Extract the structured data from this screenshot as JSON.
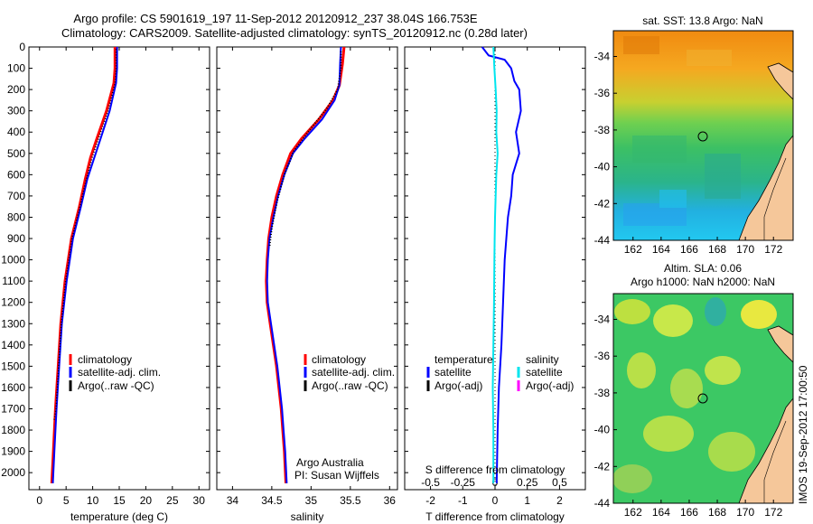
{
  "header": {
    "line1": "Argo profile: CS 5901619_197 11-Sep-2012 20120912_237 38.04S 166.753E",
    "line2": "Climatology: CARS2009. Satellite-adjusted climatology: synTS_20120912.nc (0.28d later)"
  },
  "colors": {
    "climatology": "#ff0000",
    "satellite": "#0000ff",
    "argo": "#000000",
    "sal_satellite": "#00e5ee",
    "sal_argo": "#ff00ff"
  },
  "depth_ticks": [
    "0",
    "100",
    "200",
    "300",
    "400",
    "500",
    "600",
    "700",
    "800",
    "900",
    "1000",
    "1100",
    "1200",
    "1300",
    "1400",
    "1500",
    "1600",
    "1700",
    "1800",
    "1900",
    "2000"
  ],
  "temperature_panel": {
    "xlabel": "temperature (deg C)",
    "xticks": [
      "0",
      "5",
      "10",
      "15",
      "20",
      "25",
      "30"
    ],
    "legend": [
      "climatology",
      "satellite-adj. clim.",
      "Argo(..raw -QC)"
    ]
  },
  "salinity_panel": {
    "xlabel": "salinity",
    "xticks": [
      "34",
      "34.5",
      "35",
      "35.5",
      "36"
    ],
    "legend": [
      "climatology",
      "satellite-adj. clim.",
      "Argo(..raw -QC)"
    ],
    "credit_line1": "Argo Australia",
    "credit_line2": "PI: Susan Wijffels"
  },
  "difference_panel": {
    "xlabel": "T difference from climatology",
    "top_label": "S difference from climatology",
    "xticks": [
      "-2",
      "-1",
      "0",
      "1",
      "2"
    ],
    "sticks": [
      "-0.5",
      "-0.25",
      "0",
      "0.25",
      "0.5"
    ],
    "legend_temp_title": "temperature",
    "legend_temp": [
      "satellite",
      "Argo(-adj)"
    ],
    "legend_sal_title": "salinity",
    "legend_sal": [
      "satellite",
      "Argo(-adj)"
    ]
  },
  "sst_map": {
    "title": "sat. SST: 13.8 Argo: NaN",
    "yticks": [
      "-34",
      "-36",
      "-38",
      "-40",
      "-42",
      "-44"
    ],
    "xticks": [
      "162",
      "164",
      "166",
      "168",
      "170",
      "172"
    ]
  },
  "sla_map": {
    "title1": "Altim. SLA: 0.06",
    "title2": "Argo h1000: NaN h2000: NaN",
    "yticks": [
      "-34",
      "-36",
      "-38",
      "-40",
      "-42",
      "-44"
    ],
    "xticks": [
      "162",
      "164",
      "166",
      "168",
      "170",
      "172"
    ]
  },
  "side_note": "IMOS 19-Sep-2012 17:00:50",
  "chart_data": [
    {
      "type": "line",
      "xlabel": "temperature (deg C)",
      "ylabel": "",
      "xlim": [
        -2,
        32
      ],
      "ylim": [
        2080,
        0
      ],
      "series": [
        {
          "name": "climatology",
          "points": [
            [
              14.2,
              0
            ],
            [
              14.2,
              100
            ],
            [
              14.0,
              170
            ],
            [
              12.6,
              300
            ],
            [
              10.8,
              430
            ],
            [
              9.6,
              520
            ],
            [
              8.6,
              620
            ],
            [
              7.5,
              750
            ],
            [
              6.0,
              900
            ],
            [
              4.8,
              1100
            ],
            [
              4.0,
              1300
            ],
            [
              3.5,
              1500
            ],
            [
              3.0,
              1700
            ],
            [
              2.6,
              1900
            ],
            [
              2.3,
              2050
            ]
          ]
        },
        {
          "name": "satellite-adj. clim.",
          "points": [
            [
              14.6,
              0
            ],
            [
              14.6,
              100
            ],
            [
              14.4,
              170
            ],
            [
              13.2,
              300
            ],
            [
              11.5,
              430
            ],
            [
              10.3,
              520
            ],
            [
              9.0,
              620
            ],
            [
              7.8,
              750
            ],
            [
              6.3,
              900
            ],
            [
              5.1,
              1100
            ],
            [
              4.2,
              1300
            ],
            [
              3.7,
              1500
            ],
            [
              3.2,
              1700
            ],
            [
              2.8,
              1900
            ],
            [
              2.5,
              2050
            ]
          ]
        },
        {
          "name": "Argo(..raw -QC)",
          "points": [
            [
              14.4,
              10
            ],
            [
              14.4,
              100
            ],
            [
              14.2,
              170
            ],
            [
              12.9,
              300
            ],
            [
              11.1,
              430
            ],
            [
              9.9,
              520
            ],
            [
              8.8,
              620
            ],
            [
              7.6,
              750
            ],
            [
              6.1,
              900
            ],
            [
              4.9,
              1100
            ],
            [
              4.1,
              1300
            ],
            [
              3.6,
              1500
            ],
            [
              3.1,
              1700
            ],
            [
              2.7,
              1760
            ]
          ]
        }
      ]
    },
    {
      "type": "line",
      "xlabel": "salinity",
      "ylabel": "",
      "xlim": [
        33.8,
        36.1
      ],
      "ylim": [
        2080,
        0
      ],
      "series": [
        {
          "name": "climatology",
          "points": [
            [
              35.42,
              0
            ],
            [
              35.4,
              80
            ],
            [
              35.36,
              180
            ],
            [
              35.28,
              250
            ],
            [
              35.1,
              340
            ],
            [
              34.88,
              430
            ],
            [
              34.74,
              500
            ],
            [
              34.64,
              600
            ],
            [
              34.56,
              700
            ],
            [
              34.5,
              800
            ],
            [
              34.46,
              900
            ],
            [
              34.44,
              1000
            ],
            [
              34.43,
              1100
            ],
            [
              34.44,
              1200
            ],
            [
              34.48,
              1300
            ],
            [
              34.52,
              1400
            ],
            [
              34.56,
              1500
            ],
            [
              34.59,
              1600
            ],
            [
              34.62,
              1700
            ],
            [
              34.64,
              1800
            ],
            [
              34.66,
              1900
            ],
            [
              34.68,
              2050
            ]
          ]
        },
        {
          "name": "satellite-adj. clim.",
          "points": [
            [
              35.38,
              0
            ],
            [
              35.37,
              80
            ],
            [
              35.36,
              180
            ],
            [
              35.3,
              250
            ],
            [
              35.14,
              340
            ],
            [
              34.92,
              430
            ],
            [
              34.77,
              500
            ],
            [
              34.66,
              600
            ],
            [
              34.58,
              700
            ],
            [
              34.52,
              800
            ],
            [
              34.47,
              900
            ],
            [
              34.45,
              1000
            ],
            [
              34.44,
              1100
            ],
            [
              34.45,
              1200
            ],
            [
              34.49,
              1300
            ],
            [
              34.53,
              1400
            ],
            [
              34.57,
              1500
            ],
            [
              34.6,
              1600
            ],
            [
              34.63,
              1700
            ],
            [
              34.65,
              1800
            ],
            [
              34.67,
              1900
            ],
            [
              34.69,
              2050
            ]
          ]
        },
        {
          "name": "Argo(..raw -QC)",
          "points": [
            [
              35.38,
              20
            ],
            [
              35.38,
              100
            ],
            [
              35.34,
              200
            ],
            [
              35.2,
              290
            ],
            [
              34.96,
              400
            ],
            [
              34.78,
              490
            ],
            [
              34.66,
              600
            ],
            [
              34.57,
              720
            ],
            [
              34.5,
              850
            ],
            [
              34.47,
              940
            ]
          ]
        }
      ]
    },
    {
      "type": "line",
      "xlabel": "T difference from climatology",
      "ylabel": "",
      "xlim": [
        -2.8,
        2.8
      ],
      "ylim": [
        2080,
        0
      ],
      "series": [
        {
          "name": "temperature satellite",
          "points": [
            [
              -0.4,
              0
            ],
            [
              -0.2,
              40
            ],
            [
              0.3,
              60
            ],
            [
              0.5,
              100
            ],
            [
              0.6,
              160
            ],
            [
              0.75,
              200
            ],
            [
              0.8,
              300
            ],
            [
              0.65,
              400
            ],
            [
              0.75,
              500
            ],
            [
              0.55,
              600
            ],
            [
              0.5,
              700
            ],
            [
              0.4,
              800
            ],
            [
              0.35,
              900
            ],
            [
              0.3,
              1000
            ],
            [
              0.25,
              1200
            ],
            [
              0.2,
              1400
            ],
            [
              0.12,
              1600
            ],
            [
              0.08,
              1800
            ],
            [
              0.05,
              2050
            ]
          ]
        },
        {
          "name": "salinity satellite",
          "points": [
            [
              -0.05,
              0
            ],
            [
              -0.02,
              100
            ],
            [
              0.02,
              200
            ],
            [
              0.05,
              300
            ],
            [
              0.04,
              400
            ],
            [
              0.08,
              500
            ],
            [
              0.04,
              600
            ],
            [
              0.02,
              700
            ],
            [
              0.0,
              800
            ],
            [
              -0.01,
              900
            ],
            [
              -0.02,
              1000
            ],
            [
              -0.03,
              1200
            ],
            [
              -0.05,
              1400
            ],
            [
              -0.07,
              1600
            ],
            [
              -0.05,
              1800
            ],
            [
              -0.05,
              2050
            ]
          ]
        }
      ]
    }
  ]
}
